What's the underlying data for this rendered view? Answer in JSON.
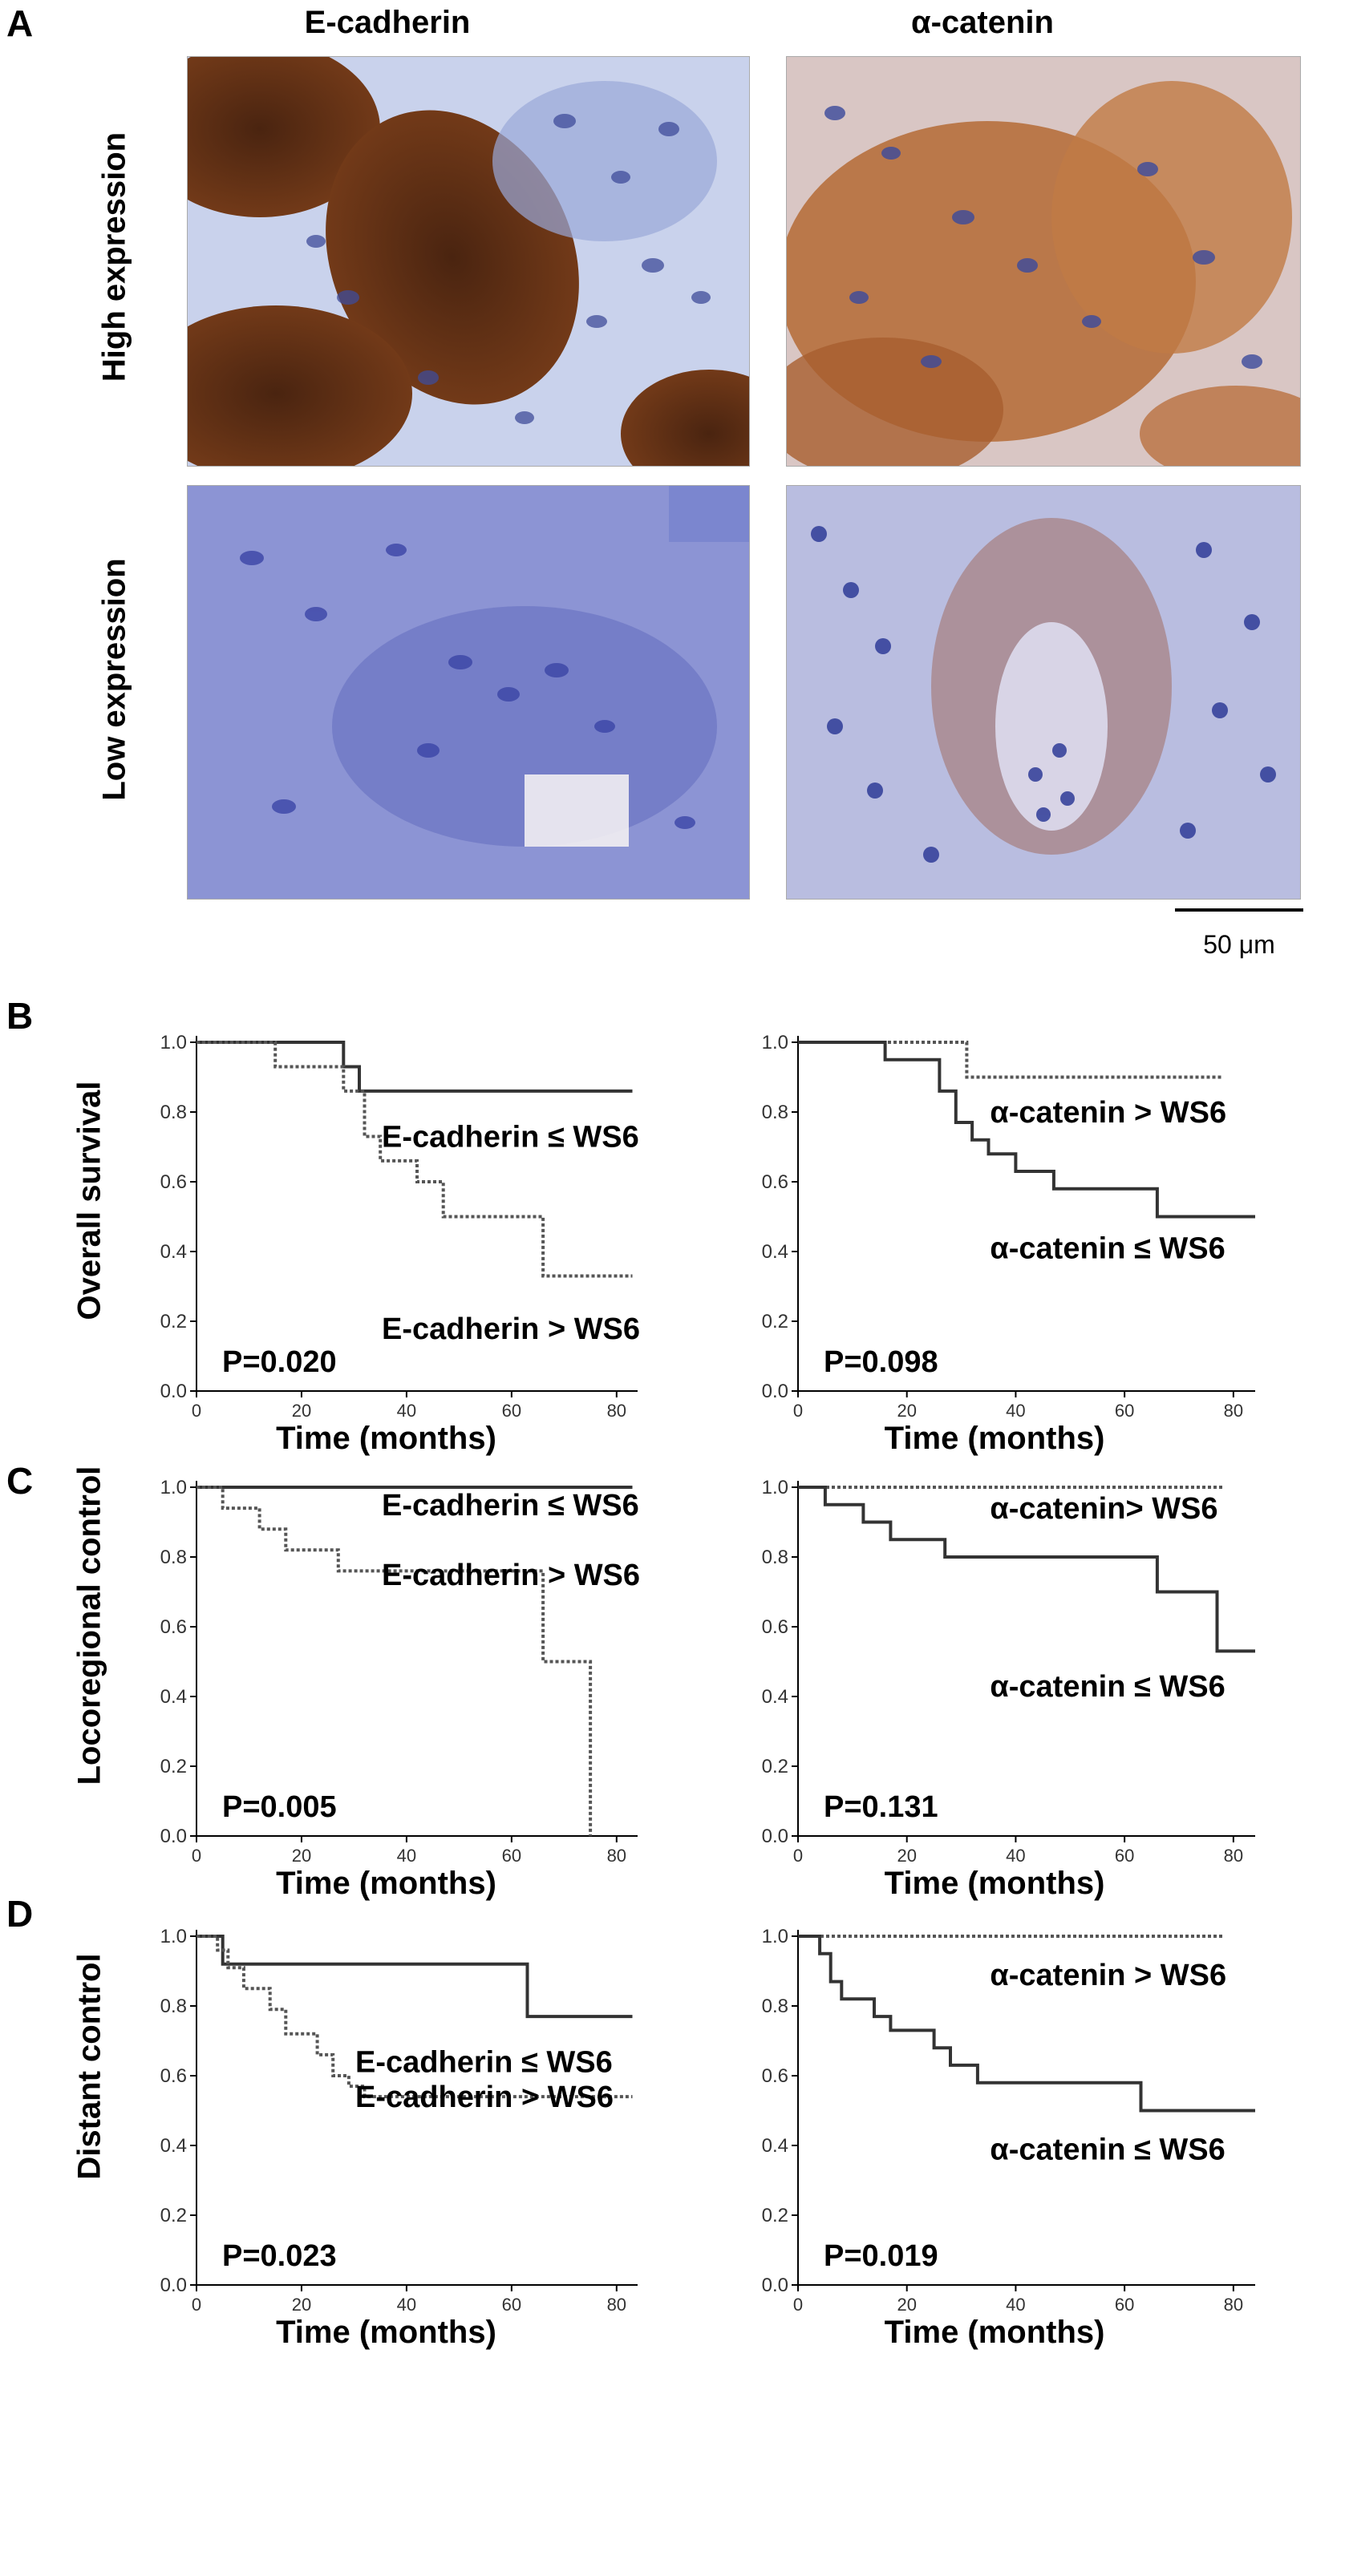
{
  "panel_a": {
    "letter": "A",
    "col_headers": [
      "E-cadherin",
      "α-catenin"
    ],
    "row_headers": [
      "High expression",
      "Low expression"
    ],
    "scale_bar": "50 μm",
    "stain_colors": {
      "brown": "#7a3e1a",
      "blue": "#5b6fc0",
      "background": "#c9d2ec"
    }
  },
  "panels": [
    {
      "letter": "B",
      "ylabel": "Overall survival"
    },
    {
      "letter": "C",
      "ylabel": "Locoregional control"
    },
    {
      "letter": "D",
      "ylabel": "Distant control"
    }
  ],
  "chart_data": [
    {
      "type": "line",
      "panel": "B",
      "side": "left",
      "xlabel": "Time (months)",
      "xlim": [
        0,
        84
      ],
      "ylim": [
        0,
        1.0
      ],
      "xticks": [
        0,
        20,
        40,
        60,
        80
      ],
      "yticks": [
        "0.0",
        "0.2",
        "0.4",
        "0.6",
        "0.8",
        "1.0"
      ],
      "pvalue": "P=0.020",
      "series": [
        {
          "name": "E-cadherin ≤ WS6",
          "style": "solid",
          "x": [
            0,
            28,
            28,
            31,
            31,
            83
          ],
          "y": [
            1.0,
            1.0,
            0.93,
            0.93,
            0.86,
            0.86
          ]
        },
        {
          "name": "E-cadherin > WS6",
          "style": "dotted",
          "x": [
            0,
            15,
            15,
            28,
            28,
            32,
            32,
            35,
            35,
            42,
            42,
            47,
            47,
            66,
            66,
            83
          ],
          "y": [
            1.0,
            1.0,
            0.93,
            0.93,
            0.86,
            0.86,
            0.73,
            0.73,
            0.66,
            0.66,
            0.6,
            0.6,
            0.5,
            0.5,
            0.33,
            0.33
          ]
        }
      ]
    },
    {
      "type": "line",
      "panel": "B",
      "side": "right",
      "xlabel": "Time (months)",
      "xlim": [
        0,
        84
      ],
      "ylim": [
        0,
        1.0
      ],
      "xticks": [
        0,
        20,
        40,
        60,
        80
      ],
      "yticks": [
        "0.0",
        "0.2",
        "0.4",
        "0.6",
        "0.8",
        "1.0"
      ],
      "pvalue": "P=0.098",
      "series": [
        {
          "name": "α-catenin > WS6",
          "style": "dotted",
          "x": [
            0,
            31,
            31,
            78
          ],
          "y": [
            1.0,
            1.0,
            0.9,
            0.9
          ]
        },
        {
          "name": "α-catenin ≤ WS6",
          "style": "solid",
          "x": [
            0,
            16,
            16,
            26,
            26,
            29,
            29,
            32,
            32,
            35,
            35,
            40,
            40,
            47,
            47,
            66,
            66,
            84
          ],
          "y": [
            1.0,
            1.0,
            0.95,
            0.95,
            0.86,
            0.86,
            0.77,
            0.77,
            0.72,
            0.72,
            0.68,
            0.68,
            0.63,
            0.63,
            0.58,
            0.58,
            0.5,
            0.5
          ]
        }
      ]
    },
    {
      "type": "line",
      "panel": "C",
      "side": "left",
      "xlabel": "Time (months)",
      "xlim": [
        0,
        84
      ],
      "ylim": [
        0,
        1.0
      ],
      "xticks": [
        0,
        20,
        40,
        60,
        80
      ],
      "yticks": [
        "0.0",
        "0.2",
        "0.4",
        "0.6",
        "0.8",
        "1.0"
      ],
      "pvalue": "P=0.005",
      "series": [
        {
          "name": "E-cadherin ≤ WS6",
          "style": "solid",
          "x": [
            0,
            83
          ],
          "y": [
            1.0,
            1.0
          ]
        },
        {
          "name": "E-cadherin > WS6",
          "style": "dotted",
          "x": [
            0,
            5,
            5,
            12,
            12,
            17,
            17,
            27,
            27,
            66,
            66,
            75,
            75
          ],
          "y": [
            1.0,
            1.0,
            0.94,
            0.94,
            0.88,
            0.88,
            0.82,
            0.82,
            0.76,
            0.76,
            0.5,
            0.5,
            0.0
          ]
        }
      ]
    },
    {
      "type": "line",
      "panel": "C",
      "side": "right",
      "xlabel": "Time (months)",
      "xlim": [
        0,
        84
      ],
      "ylim": [
        0,
        1.0
      ],
      "xticks": [
        0,
        20,
        40,
        60,
        80
      ],
      "yticks": [
        "0.0",
        "0.2",
        "0.4",
        "0.6",
        "0.8",
        "1.0"
      ],
      "pvalue": "P=0.131",
      "series": [
        {
          "name": "α-catenin> WS6",
          "style": "dotted",
          "x": [
            0,
            78
          ],
          "y": [
            1.0,
            1.0
          ]
        },
        {
          "name": "α-catenin ≤ WS6",
          "style": "solid",
          "x": [
            0,
            5,
            5,
            12,
            12,
            17,
            17,
            27,
            27,
            66,
            66,
            77,
            77,
            84
          ],
          "y": [
            1.0,
            1.0,
            0.95,
            0.95,
            0.9,
            0.9,
            0.85,
            0.85,
            0.8,
            0.8,
            0.7,
            0.7,
            0.53,
            0.53
          ]
        }
      ]
    },
    {
      "type": "line",
      "panel": "D",
      "side": "left",
      "xlabel": "Time (months)",
      "xlim": [
        0,
        84
      ],
      "ylim": [
        0,
        1.0
      ],
      "xticks": [
        0,
        20,
        40,
        60,
        80
      ],
      "yticks": [
        "0.0",
        "0.2",
        "0.4",
        "0.6",
        "0.8",
        "1.0"
      ],
      "pvalue": "P=0.023",
      "series": [
        {
          "name": "E-cadherin ≤ WS6",
          "style": "solid",
          "x": [
            0,
            5,
            5,
            63,
            63,
            83
          ],
          "y": [
            1.0,
            1.0,
            0.92,
            0.92,
            0.77,
            0.77
          ]
        },
        {
          "name": "E-cadherin > WS6",
          "style": "dotted",
          "x": [
            0,
            4,
            4,
            6,
            6,
            9,
            9,
            14,
            14,
            17,
            17,
            23,
            23,
            26,
            26,
            29,
            29,
            32,
            32,
            83
          ],
          "y": [
            1.0,
            1.0,
            0.96,
            0.96,
            0.91,
            0.91,
            0.85,
            0.85,
            0.79,
            0.79,
            0.72,
            0.72,
            0.66,
            0.66,
            0.6,
            0.6,
            0.57,
            0.57,
            0.54,
            0.54
          ]
        }
      ]
    },
    {
      "type": "line",
      "panel": "D",
      "side": "right",
      "xlabel": "Time (months)",
      "xlim": [
        0,
        84
      ],
      "ylim": [
        0,
        1.0
      ],
      "xticks": [
        0,
        20,
        40,
        60,
        80
      ],
      "yticks": [
        "0.0",
        "0.2",
        "0.4",
        "0.6",
        "0.8",
        "1.0"
      ],
      "pvalue": "P=0.019",
      "series": [
        {
          "name": "α-catenin > WS6",
          "style": "dotted",
          "x": [
            0,
            78
          ],
          "y": [
            1.0,
            1.0
          ]
        },
        {
          "name": "α-catenin ≤ WS6",
          "style": "solid",
          "x": [
            0,
            4,
            4,
            6,
            6,
            8,
            8,
            14,
            14,
            17,
            17,
            25,
            25,
            28,
            28,
            33,
            33,
            63,
            63,
            84
          ],
          "y": [
            1.0,
            1.0,
            0.95,
            0.95,
            0.87,
            0.87,
            0.82,
            0.82,
            0.77,
            0.77,
            0.73,
            0.73,
            0.68,
            0.68,
            0.63,
            0.63,
            0.58,
            0.58,
            0.5,
            0.5
          ]
        }
      ]
    }
  ]
}
